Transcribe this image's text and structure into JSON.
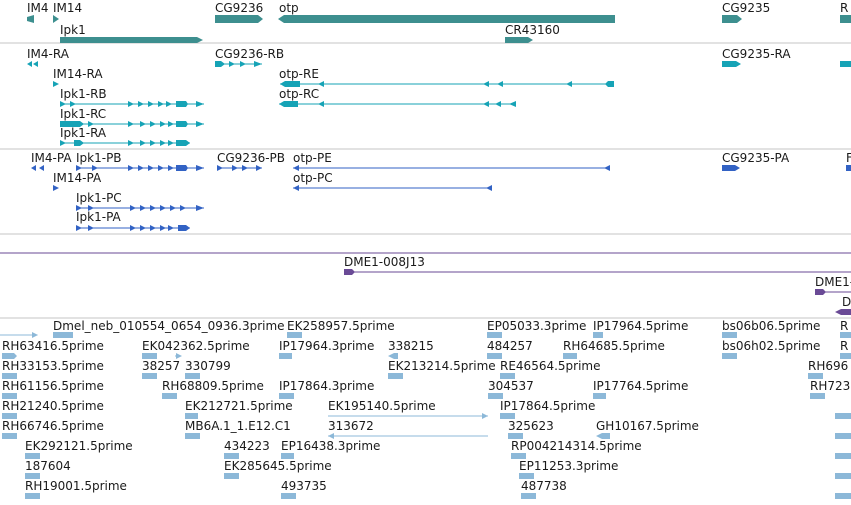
{
  "colors": {
    "gene": "#3d8f8f",
    "transcript": "#16a3b6",
    "protein": "#3262c4",
    "clone": "#6a4a96",
    "est": "#8cb8d8",
    "divider": "#c4c4c4"
  },
  "tracks": {
    "genes": {
      "labels": [
        "IM4",
        "IM14",
        "CG9236",
        "otp",
        "CG9235",
        "R",
        "Ipk1",
        "CR43160"
      ]
    },
    "transcripts": {
      "labels": [
        "IM4-RA",
        "CG9236-RB",
        "CG9235-RA",
        "otp-RE",
        "IM14-RA",
        "Ipk1-RB",
        "otp-RC",
        "Ipk1-RC",
        "Ipk1-RA"
      ]
    },
    "proteins": {
      "labels": [
        "IM4-PA",
        "Ipk1-PB",
        "CG9236-PB",
        "otp-PE",
        "CG9235-PA",
        "F",
        "IM14-PA",
        "otp-PC",
        "Ipk1-PC",
        "Ipk1-PA"
      ]
    },
    "clones": {
      "labels": [
        "DME1-008J13",
        "DME1-",
        "D"
      ]
    },
    "ests": {
      "labels": [
        "Dmel_neb_010554_0654_0936.3prime",
        "EK258957.5prime",
        "EP05033.3prime",
        "IP17964.5prime",
        "bs06b06.5prime",
        "R",
        "RH63416.5prime",
        "EK042362.5prime",
        "IP17964.3prime",
        "338215",
        "484257",
        "RH64685.5prime",
        "bs06h02.5prime",
        "R",
        "RH33153.5prime",
        "38257",
        "330799",
        "EK213214.5prime",
        "RE46564.5prime",
        "RH696",
        "RH61156.5prime",
        "RH68809.5prime",
        "IP17864.3prime",
        "304537",
        "IP17764.5prime",
        "RH723",
        "RH21240.5prime",
        "EK212721.5prime",
        "EK195140.5prime",
        "IP17864.5prime",
        "RH66746.5prime",
        "MB6A.1_1.E12.C1",
        "313672",
        "325623",
        "GH10167.5prime",
        "EK292121.5prime",
        "434223",
        "EP16438.3prime",
        "RP004214314.5prime",
        "187604",
        "EK285645.5prime",
        "EP11253.3prime",
        "RH19001.5prime",
        "493735",
        "487738"
      ]
    }
  }
}
